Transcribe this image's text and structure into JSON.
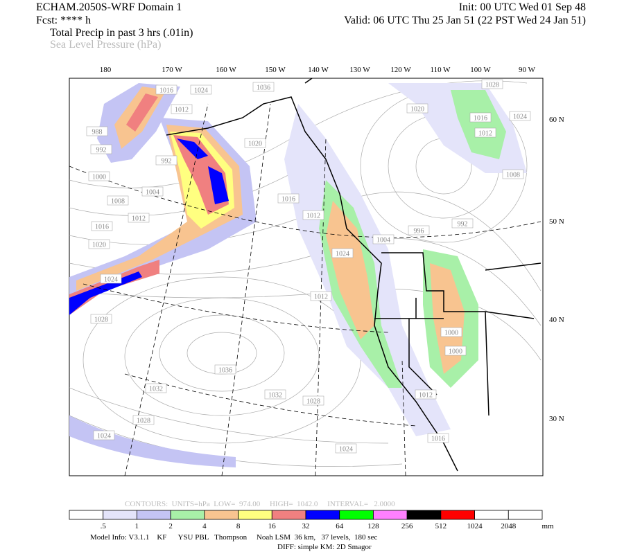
{
  "header": {
    "title": "ECHAM.2050S-WRF Domain 1",
    "forecast": "Fcst: **** h",
    "field_1": "Total Precip in past 3 hrs (.01in)",
    "field_2": "Sea Level Pressure (hPa)",
    "init": "Init: 00 UTC Wed 01 Sep 48",
    "valid": "Valid: 06 UTC Thu 25 Jan 51 (22 PST Wed 24 Jan 51)"
  },
  "map": {
    "longitude_labels": [
      "180",
      "170 W",
      "160 W",
      "150 W",
      "140 W",
      "130 W",
      "120 W",
      "110 W",
      "100 W",
      "90 W"
    ],
    "latitude_labels": [
      "60 N",
      "50 N",
      "40 N",
      "30 N"
    ],
    "pressure_labels": [
      "1024",
      "1036",
      "1028",
      "1016",
      "1012",
      "1020",
      "1016",
      "1024",
      "1012",
      "988",
      "992",
      "1020",
      "992",
      "1000",
      "1004",
      "1008",
      "1008",
      "1016",
      "1012",
      "1012",
      "992",
      "996",
      "1016",
      "1020",
      "1004",
      "1024",
      "1024",
      "1012",
      "1028",
      "1036",
      "1032",
      "1032",
      "1028",
      "1012",
      "1028",
      "1024",
      "1024",
      "1016",
      "1000",
      "1000"
    ]
  },
  "contour_info": "CONTOURS:  UNITS=hPa  LOW=  974.00     HIGH=  1042.0     INTERVAL=   2.0000",
  "colorbar": {
    "labels": [
      ".5",
      "1",
      "2",
      "4",
      "8",
      "16",
      "32",
      "64",
      "128",
      "256",
      "512",
      "1024",
      "2048"
    ],
    "unit": "mm",
    "colors": [
      "#ffffff",
      "#e4e4fa",
      "#c4c4f4",
      "#a8f0a8",
      "#f8c490",
      "#ffff80",
      "#f08080",
      "#0000ff",
      "#00ff00",
      "#ff80ff",
      "#000000",
      "#ff0000",
      "#ffffff",
      "#ffffff"
    ]
  },
  "footer": {
    "model_info": "Model Info: V3.1.1    KF      YSU PBL   Thompson     Noah LSM  36 km,   37 levels,  180 sec",
    "diff": "DIFF: simple KM: 2D Smagor"
  }
}
